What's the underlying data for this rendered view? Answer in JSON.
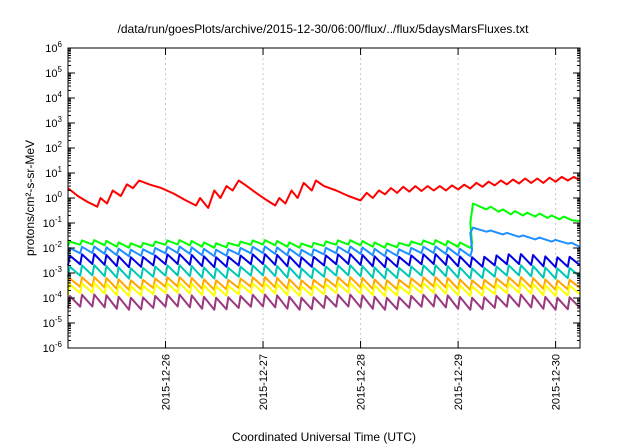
{
  "chart_data": {
    "type": "line",
    "title": "/data/run/goesPlots/archive/2015-12-30/06:00/flux/../flux/5daysMarsFluxes.txt",
    "xlabel": "Coordinated Universal Time (UTC)",
    "ylabel": "protons/cm²-s-sr-MeV",
    "y_scale": "log",
    "ylim": [
      1e-06,
      1000000.0
    ],
    "xlim": [
      "2015-12-25 00:00",
      "2015-12-30 06:00"
    ],
    "x_ticks": [
      "2015-12-26",
      "2015-12-27",
      "2015-12-28",
      "2015-12-29",
      "2015-12-30"
    ],
    "y_ticks": [
      {
        "base": "10",
        "exp": "-6"
      },
      {
        "base": "10",
        "exp": "-5"
      },
      {
        "base": "10",
        "exp": "-4"
      },
      {
        "base": "10",
        "exp": "-3"
      },
      {
        "base": "10",
        "exp": "-2"
      },
      {
        "base": "10",
        "exp": "-1"
      },
      {
        "base": "10",
        "exp": "0"
      },
      {
        "base": "10",
        "exp": "1"
      },
      {
        "base": "10",
        "exp": "2"
      },
      {
        "base": "10",
        "exp": "3"
      },
      {
        "base": "10",
        "exp": "4"
      },
      {
        "base": "10",
        "exp": "5"
      },
      {
        "base": "10",
        "exp": "6"
      }
    ],
    "grid": true,
    "legend": "none",
    "series": [
      {
        "color": "#ff0000",
        "points": [
          [
            "2015-12-25 00:00",
            2.5
          ],
          [
            "2015-12-25 02:24",
            1.2
          ],
          [
            "2015-12-25 04:48",
            0.7
          ],
          [
            "2015-12-25 07:12",
            0.45
          ],
          [
            "2015-12-25 08:00",
            1.0
          ],
          [
            "2015-12-25 09:36",
            0.6
          ],
          [
            "2015-12-25 11:00",
            2.0
          ],
          [
            "2015-12-25 13:00",
            1.2
          ],
          [
            "2015-12-25 14:30",
            3.5
          ],
          [
            "2015-12-25 16:00",
            2.5
          ],
          [
            "2015-12-25 17:30",
            5.0
          ],
          [
            "2015-12-25 20:00",
            3.5
          ],
          [
            "2015-12-25 23:00",
            2.5
          ],
          [
            "2015-12-26 02:00",
            1.5
          ],
          [
            "2015-12-26 05:00",
            0.8
          ],
          [
            "2015-12-26 07:30",
            0.5
          ],
          [
            "2015-12-26 08:30",
            1.0
          ],
          [
            "2015-12-26 10:30",
            0.4
          ],
          [
            "2015-12-26 12:00",
            2.0
          ],
          [
            "2015-12-26 13:30",
            1.0
          ],
          [
            "2015-12-26 15:00",
            3.0
          ],
          [
            "2015-12-26 16:30",
            2.0
          ],
          [
            "2015-12-26 18:00",
            5.0
          ],
          [
            "2015-12-26 20:00",
            3.0
          ],
          [
            "2015-12-26 22:30",
            1.5
          ],
          [
            "2015-12-27 01:00",
            0.8
          ],
          [
            "2015-12-27 03:00",
            0.5
          ],
          [
            "2015-12-27 04:00",
            1.0
          ],
          [
            "2015-12-27 05:30",
            0.6
          ],
          [
            "2015-12-27 07:00",
            2.0
          ],
          [
            "2015-12-27 08:30",
            1.0
          ],
          [
            "2015-12-27 10:00",
            4.0
          ],
          [
            "2015-12-27 12:00",
            2.0
          ],
          [
            "2015-12-27 13:00",
            5.0
          ],
          [
            "2015-12-27 15:00",
            3.0
          ],
          [
            "2015-12-27 18:00",
            2.0
          ],
          [
            "2015-12-27 21:00",
            1.2
          ],
          [
            "2015-12-28 00:00",
            0.8
          ],
          [
            "2015-12-28 01:30",
            1.6
          ],
          [
            "2015-12-28 03:00",
            1.0
          ],
          [
            "2015-12-28 04:30",
            2.0
          ],
          [
            "2015-12-28 06:00",
            1.4
          ],
          [
            "2015-12-28 07:30",
            2.5
          ],
          [
            "2015-12-28 09:00",
            1.6
          ],
          [
            "2015-12-28 10:30",
            2.8
          ],
          [
            "2015-12-28 12:00",
            1.8
          ],
          [
            "2015-12-28 13:30",
            3.0
          ],
          [
            "2015-12-28 15:00",
            1.9
          ],
          [
            "2015-12-28 16:30",
            3.0
          ],
          [
            "2015-12-28 18:00",
            2.0
          ],
          [
            "2015-12-28 19:30",
            3.0
          ],
          [
            "2015-12-28 21:00",
            2.0
          ],
          [
            "2015-12-28 22:30",
            3.2
          ],
          [
            "2015-12-29 00:00",
            2.2
          ],
          [
            "2015-12-29 01:30",
            3.4
          ],
          [
            "2015-12-29 03:00",
            2.4
          ],
          [
            "2015-12-29 04:30",
            4.0
          ],
          [
            "2015-12-29 06:00",
            2.8
          ],
          [
            "2015-12-29 07:30",
            4.5
          ],
          [
            "2015-12-29 09:00",
            3.2
          ],
          [
            "2015-12-29 10:30",
            5.0
          ],
          [
            "2015-12-29 12:00",
            3.5
          ],
          [
            "2015-12-29 13:30",
            5.5
          ],
          [
            "2015-12-29 15:00",
            3.8
          ],
          [
            "2015-12-29 16:30",
            6.0
          ],
          [
            "2015-12-29 18:00",
            4.0
          ],
          [
            "2015-12-29 19:30",
            6.0
          ],
          [
            "2015-12-29 21:00",
            4.0
          ],
          [
            "2015-12-29 22:30",
            6.5
          ],
          [
            "2015-12-30 00:00",
            4.5
          ],
          [
            "2015-12-30 01:30",
            7.0
          ],
          [
            "2015-12-30 03:00",
            5.0
          ],
          [
            "2015-12-30 04:30",
            7.0
          ],
          [
            "2015-12-30 06:00",
            5.0
          ]
        ]
      },
      {
        "color": "#00ff00",
        "base": [
          0.018,
          0.012
        ],
        "step_date": "2015-12-29 03:00",
        "post": [
          [
            "2015-12-29 03:00",
            0.1
          ],
          [
            "2015-12-29 03:40",
            0.6
          ],
          [
            "2015-12-29 07:00",
            0.35
          ],
          [
            "2015-12-29 08:00",
            0.45
          ],
          [
            "2015-12-29 10:00",
            0.28
          ],
          [
            "2015-12-29 11:00",
            0.35
          ],
          [
            "2015-12-29 13:00",
            0.22
          ],
          [
            "2015-12-29 14:00",
            0.3
          ],
          [
            "2015-12-29 16:00",
            0.2
          ],
          [
            "2015-12-29 17:00",
            0.26
          ],
          [
            "2015-12-29 19:00",
            0.18
          ],
          [
            "2015-12-29 20:00",
            0.24
          ],
          [
            "2015-12-29 22:00",
            0.16
          ],
          [
            "2015-12-29 23:00",
            0.2
          ],
          [
            "2015-12-30 01:00",
            0.14
          ],
          [
            "2015-12-30 02:00",
            0.18
          ],
          [
            "2015-12-30 04:00",
            0.13
          ],
          [
            "2015-12-30 06:00",
            0.12
          ]
        ]
      },
      {
        "color": "#1e90ff",
        "base": [
          0.01,
          0.0055
        ],
        "step_date": "2015-12-29 03:00",
        "post": [
          [
            "2015-12-29 03:00",
            0.04
          ],
          [
            "2015-12-29 03:40",
            0.065
          ],
          [
            "2015-12-29 07:00",
            0.045
          ],
          [
            "2015-12-29 08:00",
            0.05
          ],
          [
            "2015-12-29 11:00",
            0.035
          ],
          [
            "2015-12-29 12:00",
            0.04
          ],
          [
            "2015-12-29 15:00",
            0.028
          ],
          [
            "2015-12-29 16:00",
            0.032
          ],
          [
            "2015-12-29 19:00",
            0.022
          ],
          [
            "2015-12-29 20:00",
            0.026
          ],
          [
            "2015-12-29 23:00",
            0.018
          ],
          [
            "2015-12-30 00:00",
            0.021
          ],
          [
            "2015-12-30 03:00",
            0.015
          ],
          [
            "2015-12-30 04:00",
            0.016
          ],
          [
            "2015-12-30 06:00",
            0.011
          ]
        ]
      },
      {
        "color": "#0000e0",
        "base": [
          0.005,
          0.002
        ],
        "amp": 2.2
      },
      {
        "color": "#00c8b4",
        "base": [
          0.0018,
          0.0007
        ],
        "amp": 2.2
      },
      {
        "color": "#ffa500",
        "base": [
          0.0006,
          0.00025
        ],
        "amp": 2.3
      },
      {
        "color": "#ffff00",
        "base": [
          0.00035,
          0.00014
        ],
        "amp": 2.3
      },
      {
        "color": "#9a3880",
        "base": [
          0.00012,
          4e-05
        ],
        "amp": 2.6
      }
    ]
  }
}
